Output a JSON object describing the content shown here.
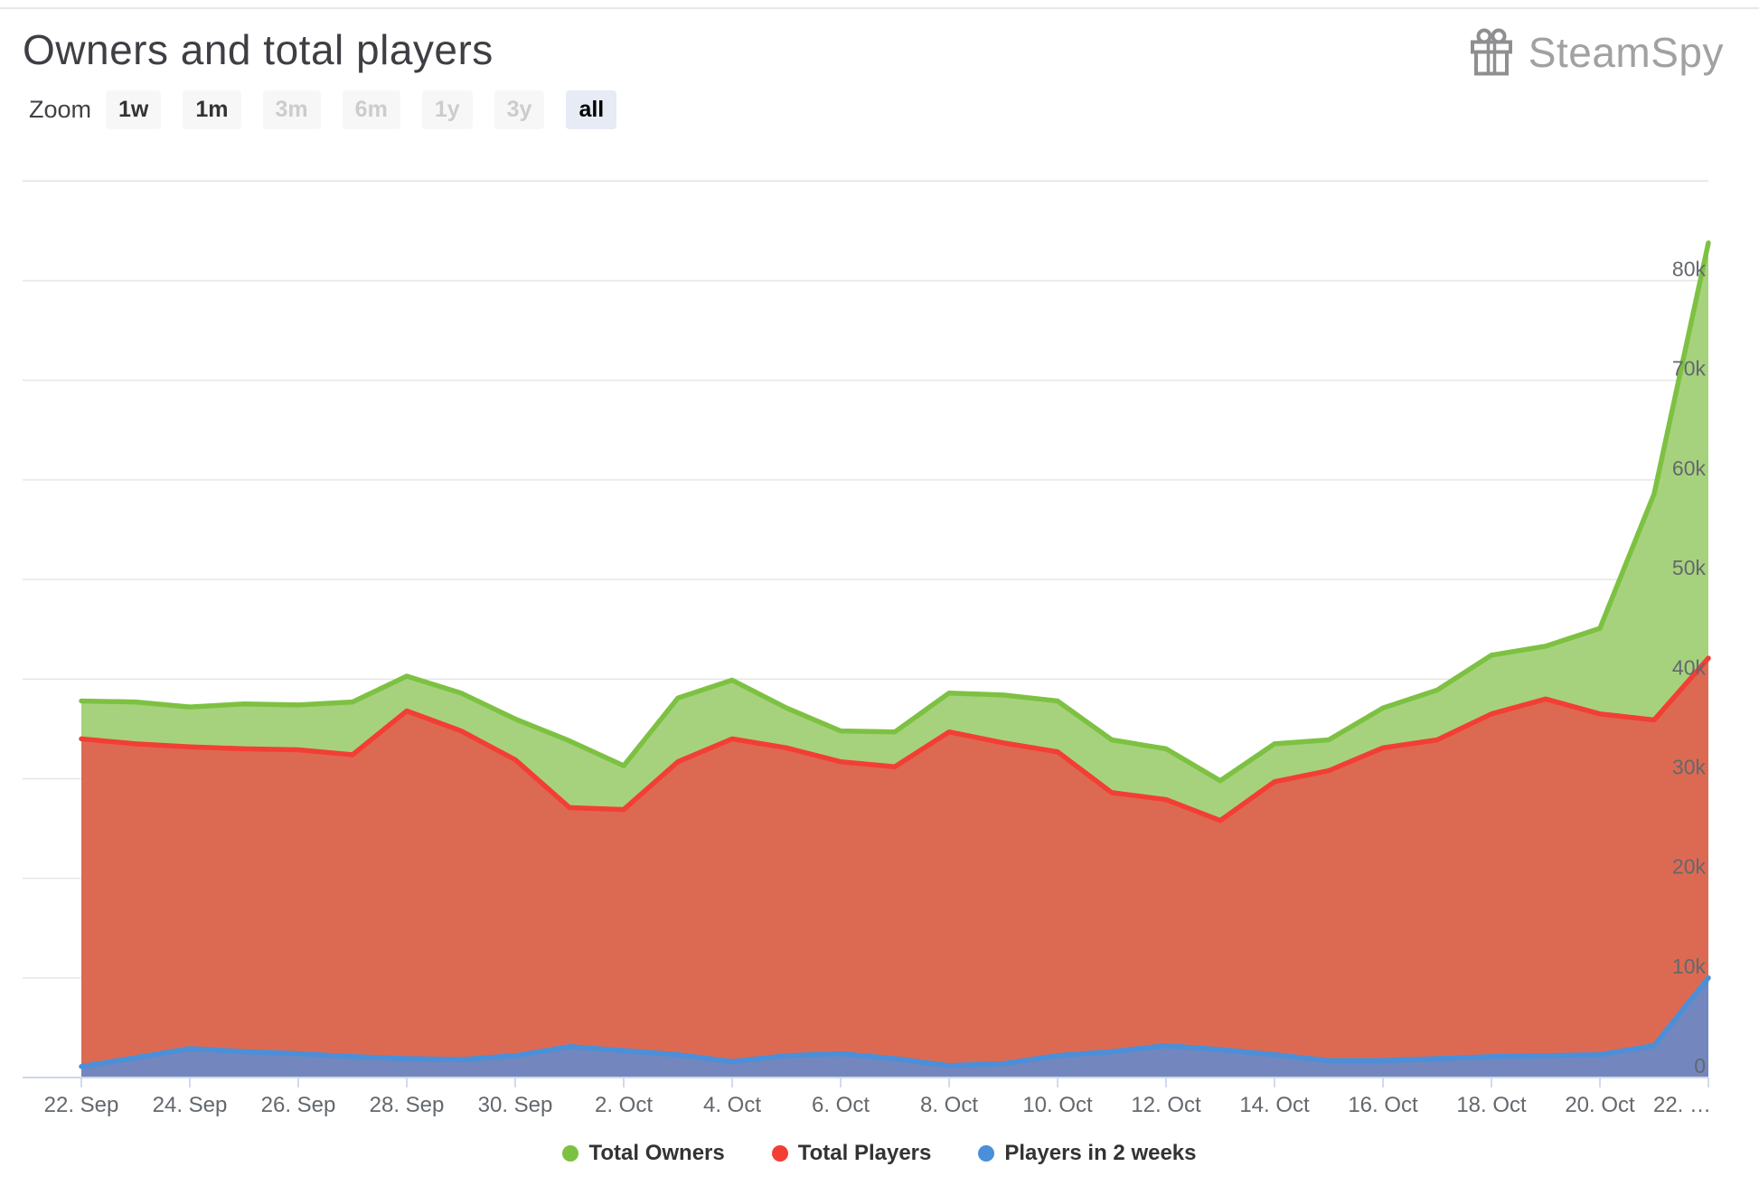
{
  "page": {
    "title": "Owners and total players",
    "brand": "SteamSpy"
  },
  "toolbar": {
    "label": "Zoom",
    "buttons": [
      {
        "label": "1w",
        "state": "enabled"
      },
      {
        "label": "1m",
        "state": "enabled"
      },
      {
        "label": "3m",
        "state": "disabled"
      },
      {
        "label": "6m",
        "state": "disabled"
      },
      {
        "label": "1y",
        "state": "disabled"
      },
      {
        "label": "3y",
        "state": "disabled"
      },
      {
        "label": "all",
        "state": "selected"
      }
    ]
  },
  "chart_data": {
    "type": "area",
    "title": "Owners and total players",
    "x_unit": "day",
    "x_days": [
      "22 Sep",
      "23 Sep",
      "24 Sep",
      "25 Sep",
      "26 Sep",
      "27 Sep",
      "28 Sep",
      "29 Sep",
      "30 Sep",
      "1 Oct",
      "2 Oct",
      "3 Oct",
      "4 Oct",
      "5 Oct",
      "6 Oct",
      "7 Oct",
      "8 Oct",
      "9 Oct",
      "10 Oct",
      "11 Oct",
      "12 Oct",
      "13 Oct",
      "14 Oct",
      "15 Oct",
      "16 Oct",
      "17 Oct",
      "18 Oct",
      "19 Oct",
      "20 Oct",
      "21 Oct",
      "22 Oct"
    ],
    "x_tick_labels": [
      "22. Sep",
      "24. Sep",
      "26. Sep",
      "28. Sep",
      "30. Sep",
      "2. Oct",
      "4. Oct",
      "6. Oct",
      "8. Oct",
      "10. Oct",
      "12. Oct",
      "14. Oct",
      "16. Oct",
      "18. Oct",
      "20. Oct",
      "22. …"
    ],
    "y_tick_labels": [
      "0",
      "10k",
      "20k",
      "30k",
      "40k",
      "50k",
      "60k",
      "70k",
      "80k"
    ],
    "ylim": [
      0,
      90000
    ],
    "y_tick_interval": 10000,
    "grid": true,
    "y_axis_position": "right",
    "legend_position": "bottom",
    "series": [
      {
        "name": "Total Owners",
        "color": "#7dc142",
        "fill": "#a7d27d",
        "values": [
          37800,
          37700,
          37200,
          37500,
          37400,
          37700,
          40300,
          38600,
          36000,
          33800,
          31300,
          38100,
          39900,
          37100,
          34800,
          34700,
          38600,
          38400,
          37800,
          33900,
          33000,
          29800,
          33500,
          33900,
          37100,
          38900,
          42400,
          43300,
          45100,
          58600,
          83800
        ]
      },
      {
        "name": "Total Players",
        "color": "#f33e35",
        "fill": "#dc6a52",
        "values": [
          34000,
          33500,
          33200,
          33000,
          32900,
          32400,
          36800,
          34800,
          31900,
          27100,
          26900,
          31700,
          34000,
          33100,
          31700,
          31200,
          34700,
          33600,
          32700,
          28600,
          27900,
          25800,
          29700,
          30800,
          33100,
          33900,
          36500,
          38000,
          36500,
          35900,
          42100
        ]
      },
      {
        "name": "Players in 2 weeks",
        "color": "#4a8fd9",
        "fill": "#7386bd",
        "values": [
          1100,
          2000,
          2900,
          2600,
          2400,
          2100,
          1900,
          1800,
          2200,
          3100,
          2700,
          2300,
          1600,
          2200,
          2400,
          1900,
          1200,
          1400,
          2200,
          2600,
          3200,
          2800,
          2300,
          1700,
          1700,
          1900,
          2100,
          2200,
          2300,
          3200,
          10000
        ]
      }
    ]
  },
  "colors": {
    "grid": "#e6e6e6",
    "axis_line": "#ccd6eb",
    "axis_label": "#63686e",
    "legend_text": "#333333",
    "title": "#3e3e44",
    "brand": "#a1a1a3",
    "brand_icon": "#8f8f92",
    "separator": "#e8e8e8"
  }
}
